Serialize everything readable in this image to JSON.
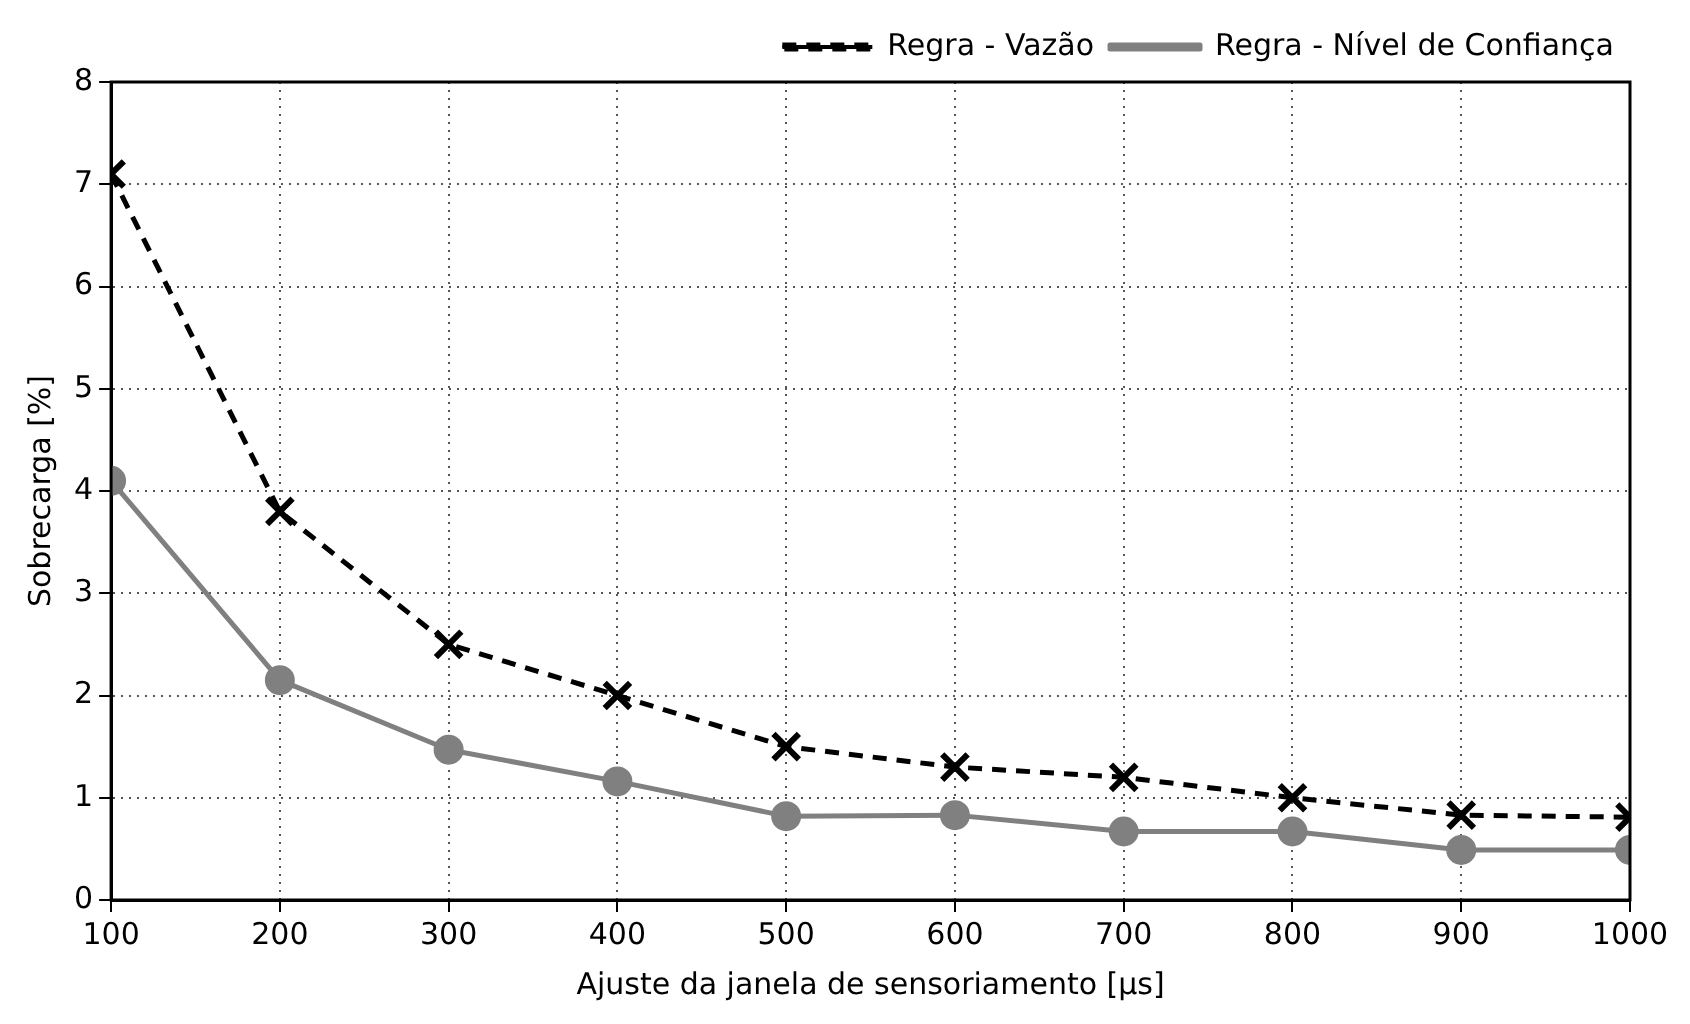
{
  "chart_data": {
    "type": "line",
    "xlabel": "Ajuste da janela de sensoriamento [µs]",
    "ylabel": "Sobrecarga [%]",
    "x": [
      100,
      200,
      300,
      400,
      500,
      600,
      700,
      800,
      900,
      1000
    ],
    "xlim": [
      100,
      1000
    ],
    "xticks": [
      100,
      200,
      300,
      400,
      500,
      600,
      700,
      800,
      900,
      1000
    ],
    "ylim": [
      0,
      8
    ],
    "yticks": [
      0,
      1,
      2,
      3,
      4,
      5,
      6,
      7,
      8
    ],
    "grid": true,
    "legend": "top right",
    "series": [
      {
        "name": "Regra - Vazão",
        "color": "#000000",
        "marker": "cross",
        "line_style": "dashed",
        "values": [
          7.1,
          3.8,
          2.5,
          2.0,
          1.5,
          1.3,
          1.2,
          1.0,
          0.83,
          0.81
        ]
      },
      {
        "name": "Regra - Nível de Confiança",
        "color": "#808080",
        "marker": "circle",
        "line_style": "solid",
        "values": [
          4.1,
          2.15,
          1.47,
          1.16,
          0.82,
          0.83,
          0.67,
          0.67,
          0.49,
          0.49
        ]
      }
    ]
  }
}
